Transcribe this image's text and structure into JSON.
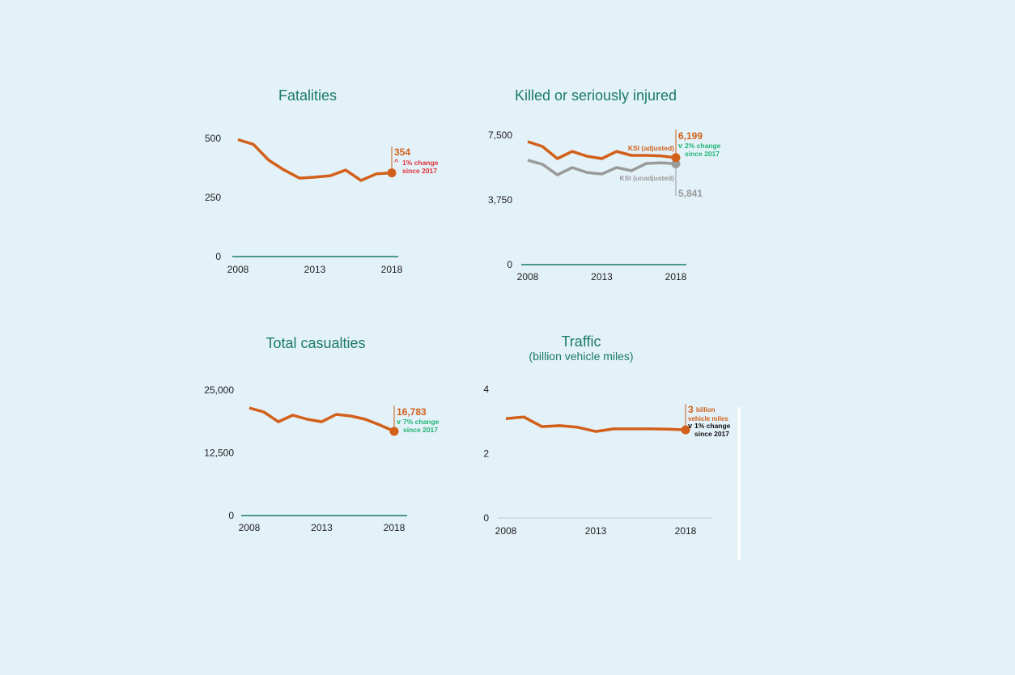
{
  "colors": {
    "background": "#e3f1f8",
    "title": "#1a7a68",
    "primary": "#d2601a",
    "secondary": "#9a9a9a",
    "decrease": "#22b573",
    "increase": "#e0303a",
    "neutral": "#111111",
    "axis": "#1a7a68"
  },
  "chart_data": [
    {
      "type": "line",
      "title": "Fatalities",
      "subtitle": "",
      "x": [
        2008,
        2009,
        2010,
        2011,
        2012,
        2013,
        2014,
        2015,
        2016,
        2017,
        2018
      ],
      "xticks": [
        "2008",
        "2013",
        "2018"
      ],
      "yticks": [
        "500",
        "250",
        "0"
      ],
      "ylim": [
        0,
        500
      ],
      "series": [
        {
          "values": [
            495,
            475,
            408,
            366,
            332,
            336,
            342,
            366,
            322,
            350,
            354
          ],
          "color": "#d2601a"
        }
      ],
      "annotation": {
        "value": "354",
        "change": "1% change",
        "since": "since 2017",
        "direction": "up",
        "arrow": "^",
        "change_color": "#e0303a"
      }
    },
    {
      "type": "line",
      "title": "Killed or seriously injured",
      "subtitle": "",
      "x": [
        2008,
        2009,
        2010,
        2011,
        2012,
        2013,
        2014,
        2015,
        2016,
        2017,
        2018
      ],
      "xticks": [
        "2008",
        "2013",
        "2018"
      ],
      "yticks": [
        "7,500",
        "3,750",
        "0"
      ],
      "ylim": [
        0,
        7500
      ],
      "series": [
        {
          "name": "KSI (adjusted)",
          "values": [
            7125,
            6844,
            6140,
            6560,
            6280,
            6140,
            6560,
            6330,
            6330,
            6300,
            6199
          ],
          "color": "#d2601a"
        },
        {
          "name": "KSI (unadjusted)",
          "values": [
            6050,
            5810,
            5200,
            5625,
            5340,
            5250,
            5625,
            5440,
            5860,
            5900,
            5841
          ],
          "color": "#9a9a9a"
        }
      ],
      "annotation": {
        "value": "6,199",
        "secondary_value": "5,841",
        "change": "2% change",
        "since": "since 2017",
        "direction": "down",
        "arrow": "v",
        "change_color": "#22b573"
      }
    },
    {
      "type": "line",
      "title": "Total casualties",
      "subtitle": "",
      "x": [
        2008,
        2009,
        2010,
        2011,
        2012,
        2013,
        2014,
        2015,
        2016,
        2017,
        2018
      ],
      "xticks": [
        "2008",
        "2013",
        "2018"
      ],
      "yticks": [
        "25,000",
        "12,500",
        "0"
      ],
      "ylim": [
        0,
        25000
      ],
      "series": [
        {
          "values": [
            21450,
            20650,
            18700,
            20000,
            19200,
            18700,
            20160,
            19840,
            19200,
            18060,
            16783
          ],
          "color": "#d2601a"
        }
      ],
      "annotation": {
        "value": "16,783",
        "change": "7% change",
        "since": "since 2017",
        "direction": "down",
        "arrow": "v",
        "change_color": "#22b573"
      }
    },
    {
      "type": "line",
      "title": "Traffic",
      "subtitle": "(billion vehicle miles)",
      "x": [
        2008,
        2009,
        2010,
        2011,
        2012,
        2013,
        2014,
        2015,
        2016,
        2017,
        2018
      ],
      "xticks": [
        "2008",
        "2013",
        "2018"
      ],
      "yticks": [
        "4",
        "2",
        "0"
      ],
      "ylim": [
        0,
        4
      ],
      "series": [
        {
          "values": [
            3.09,
            3.14,
            2.84,
            2.87,
            2.82,
            2.69,
            2.77,
            2.77,
            2.77,
            2.76,
            2.74
          ],
          "color": "#d2601a"
        }
      ],
      "annotation": {
        "value": "3",
        "unit1": "billion",
        "unit2": "vehicle miles",
        "change": "1% change",
        "since": "since 2017",
        "direction": "down",
        "arrow": "v",
        "change_color": "#111111"
      }
    }
  ]
}
